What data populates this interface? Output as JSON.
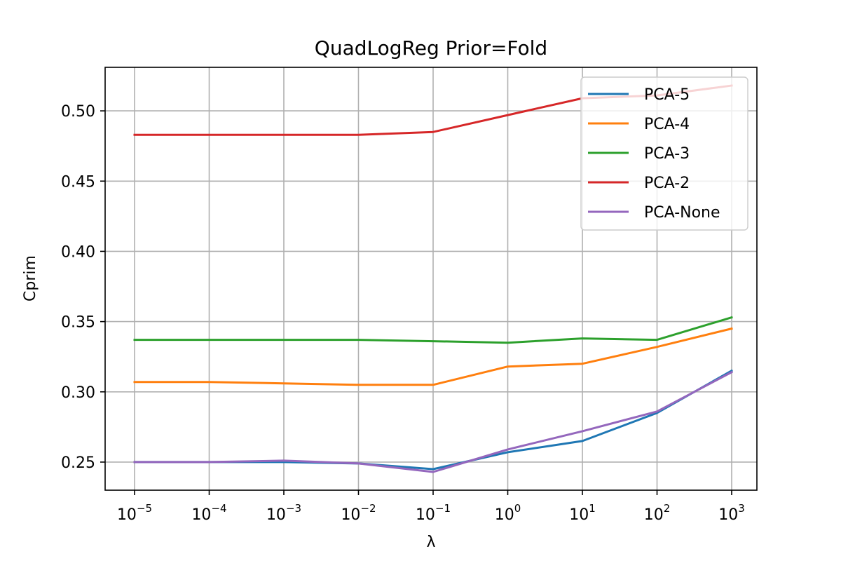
{
  "chart_data": {
    "type": "line",
    "title": "QuadLogReg Prior=Fold",
    "xlabel": "λ",
    "ylabel": "Cprim",
    "x_scale": "log",
    "x": [
      1e-05,
      0.0001,
      0.001,
      0.01,
      0.1,
      1,
      10,
      100,
      1000
    ],
    "x_tick_labels": [
      {
        "base": "10",
        "exp": "−5"
      },
      {
        "base": "10",
        "exp": "−4"
      },
      {
        "base": "10",
        "exp": "−3"
      },
      {
        "base": "10",
        "exp": "−2"
      },
      {
        "base": "10",
        "exp": "−1"
      },
      {
        "base": "10",
        "exp": "0"
      },
      {
        "base": "10",
        "exp": "1"
      },
      {
        "base": "10",
        "exp": "2"
      },
      {
        "base": "10",
        "exp": "3"
      }
    ],
    "y_ticks": [
      0.25,
      0.3,
      0.35,
      0.4,
      0.45,
      0.5
    ],
    "y_tick_labels": [
      "0.25",
      "0.30",
      "0.35",
      "0.40",
      "0.45",
      "0.50"
    ],
    "ylim": [
      0.23,
      0.531
    ],
    "grid": true,
    "legend_position": "top-right",
    "series": [
      {
        "name": "PCA-5",
        "color": "#1f77b4",
        "values": [
          0.25,
          0.25,
          0.25,
          0.249,
          0.245,
          0.257,
          0.265,
          0.285,
          0.315
        ]
      },
      {
        "name": "PCA-4",
        "color": "#ff7f0e",
        "values": [
          0.307,
          0.307,
          0.306,
          0.305,
          0.305,
          0.318,
          0.32,
          0.332,
          0.345
        ]
      },
      {
        "name": "PCA-3",
        "color": "#2ca02c",
        "values": [
          0.337,
          0.337,
          0.337,
          0.337,
          0.336,
          0.335,
          0.338,
          0.337,
          0.353
        ]
      },
      {
        "name": "PCA-2",
        "color": "#d62728",
        "values": [
          0.483,
          0.483,
          0.483,
          0.483,
          0.485,
          0.497,
          0.509,
          0.511,
          0.518
        ]
      },
      {
        "name": "PCA-None",
        "color": "#9467bd",
        "values": [
          0.25,
          0.25,
          0.251,
          0.249,
          0.243,
          0.259,
          0.272,
          0.286,
          0.314
        ]
      }
    ]
  }
}
